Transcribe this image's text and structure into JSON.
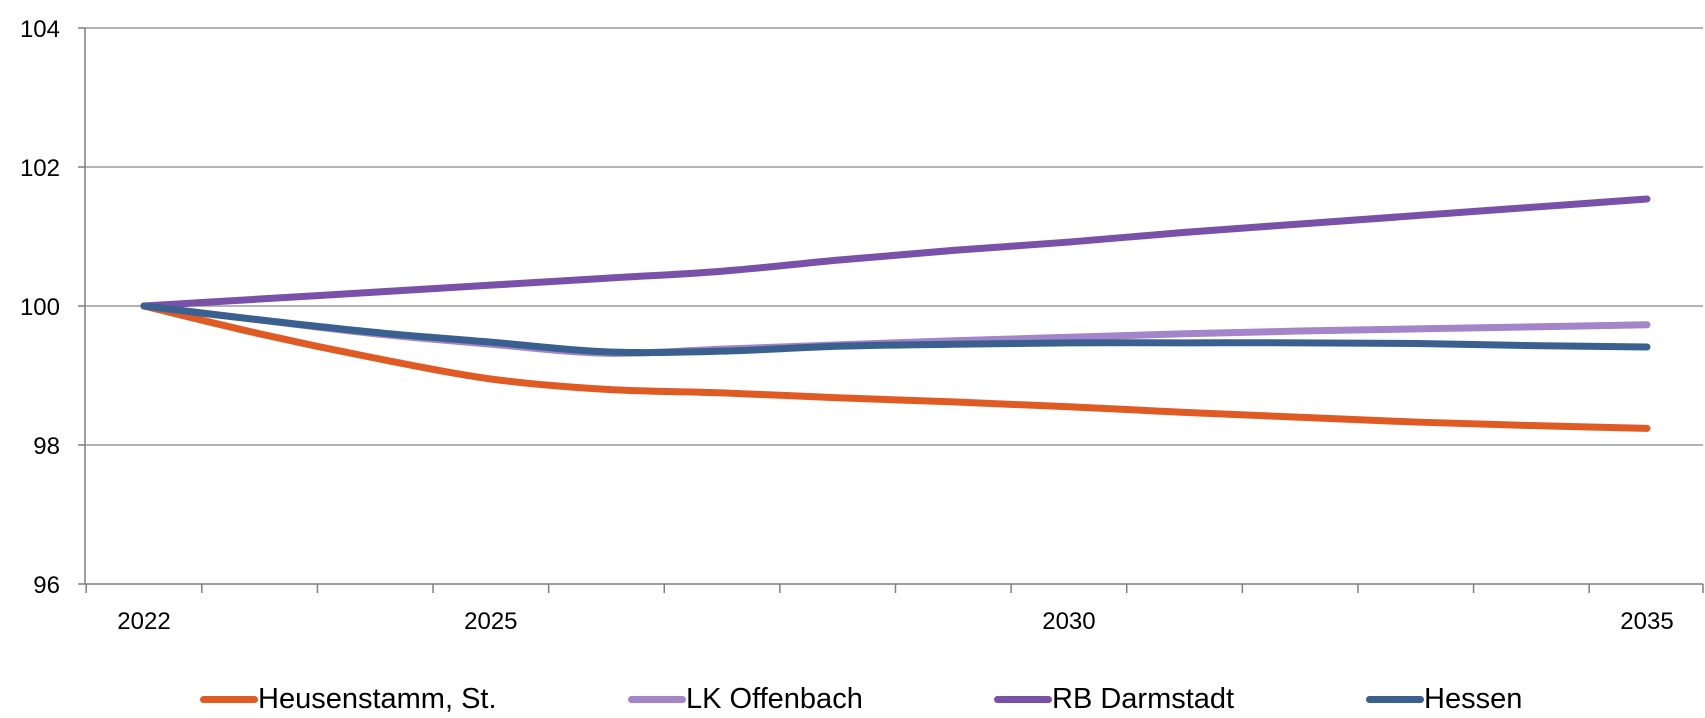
{
  "chart_data": {
    "type": "line",
    "title": "",
    "xlabel": "",
    "ylabel": "",
    "x": [
      2022,
      2023,
      2024,
      2025,
      2026,
      2027,
      2028,
      2029,
      2030,
      2031,
      2032,
      2033,
      2034,
      2035
    ],
    "x_tick_labels": [
      "2022",
      "2025",
      "2030",
      "2035"
    ],
    "x_tick_values": [
      2022,
      2025,
      2030,
      2035
    ],
    "y_tick_labels": [
      "96",
      "98",
      "100",
      "102",
      "104"
    ],
    "y_tick_values": [
      96,
      98,
      100,
      102,
      104
    ],
    "ylim": [
      96,
      104
    ],
    "grid": "horizontal",
    "legend_position": "bottom",
    "series": [
      {
        "name": "Heusenstamm, St.",
        "color": "#E05A24",
        "values": [
          100.0,
          99.6,
          99.25,
          98.95,
          98.8,
          98.75,
          98.68,
          98.62,
          98.55,
          98.47,
          98.4,
          98.33,
          98.28,
          98.24
        ]
      },
      {
        "name": "LK Offenbach",
        "color": "#A485C9",
        "values": [
          100.0,
          99.8,
          99.6,
          99.45,
          99.32,
          99.38,
          99.44,
          99.5,
          99.55,
          99.6,
          99.64,
          99.67,
          99.7,
          99.73
        ]
      },
      {
        "name": "RB Darmstadt",
        "color": "#7A51A9",
        "values": [
          100.0,
          100.1,
          100.2,
          100.3,
          100.4,
          100.5,
          100.66,
          100.8,
          100.92,
          101.06,
          101.18,
          101.3,
          101.42,
          101.54
        ]
      },
      {
        "name": "Hessen",
        "color": "#3A6090",
        "values": [
          100.0,
          99.8,
          99.62,
          99.48,
          99.34,
          99.35,
          99.42,
          99.45,
          99.47,
          99.47,
          99.47,
          99.46,
          99.43,
          99.41
        ]
      }
    ]
  }
}
